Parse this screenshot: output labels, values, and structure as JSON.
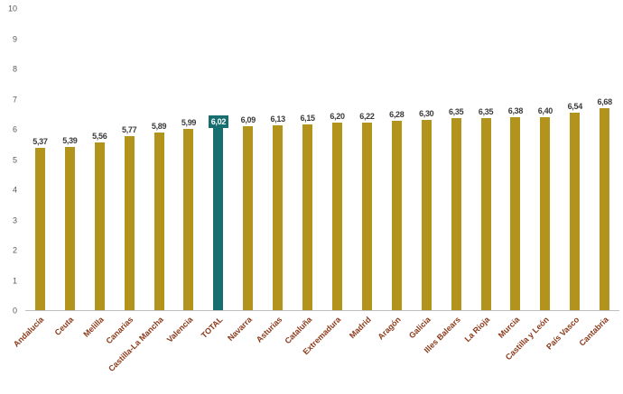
{
  "chart_data": {
    "type": "bar",
    "title": "",
    "xlabel": "",
    "ylabel": "",
    "ylim": [
      0,
      10
    ],
    "yticks": [
      0,
      1,
      2,
      3,
      4,
      5,
      6,
      7,
      8,
      9,
      10
    ],
    "grid": false,
    "legend": false,
    "categories": [
      "Andalucía",
      "Ceuta",
      "Melilla",
      "Canarias",
      "Castilla-La Mancha",
      "Valencia",
      "TOTAL",
      "Navarra",
      "Asturias",
      "Cataluña",
      "Extremadura",
      "Madrid",
      "Aragón",
      "Galicia",
      "Illes Balears",
      "La Rioja",
      "Murcia",
      "Castilla y León",
      "País Vasco",
      "Cantabria"
    ],
    "values": [
      5.37,
      5.39,
      5.56,
      5.77,
      5.89,
      5.99,
      6.02,
      6.09,
      6.13,
      6.15,
      6.2,
      6.22,
      6.28,
      6.3,
      6.35,
      6.35,
      6.38,
      6.4,
      6.54,
      6.68
    ],
    "value_labels": [
      "5,37",
      "5,39",
      "5,56",
      "5,77",
      "5,89",
      "5,99",
      "6,02",
      "6,09",
      "6,13",
      "6,15",
      "6,20",
      "6,22",
      "6,28",
      "6,30",
      "6,35",
      "6,35",
      "6,38",
      "6,40",
      "6,54",
      "6,68"
    ],
    "highlight_category": "TOTAL",
    "colors": {
      "bar": "#b2941c",
      "highlight_bar": "#176e6e",
      "highlight_label_text": "#ffffff",
      "value_label": "#3b3b3b",
      "category_label": "#8b3a1a",
      "axis_label": "#595959",
      "axis_line": "#bfbfbf"
    }
  }
}
